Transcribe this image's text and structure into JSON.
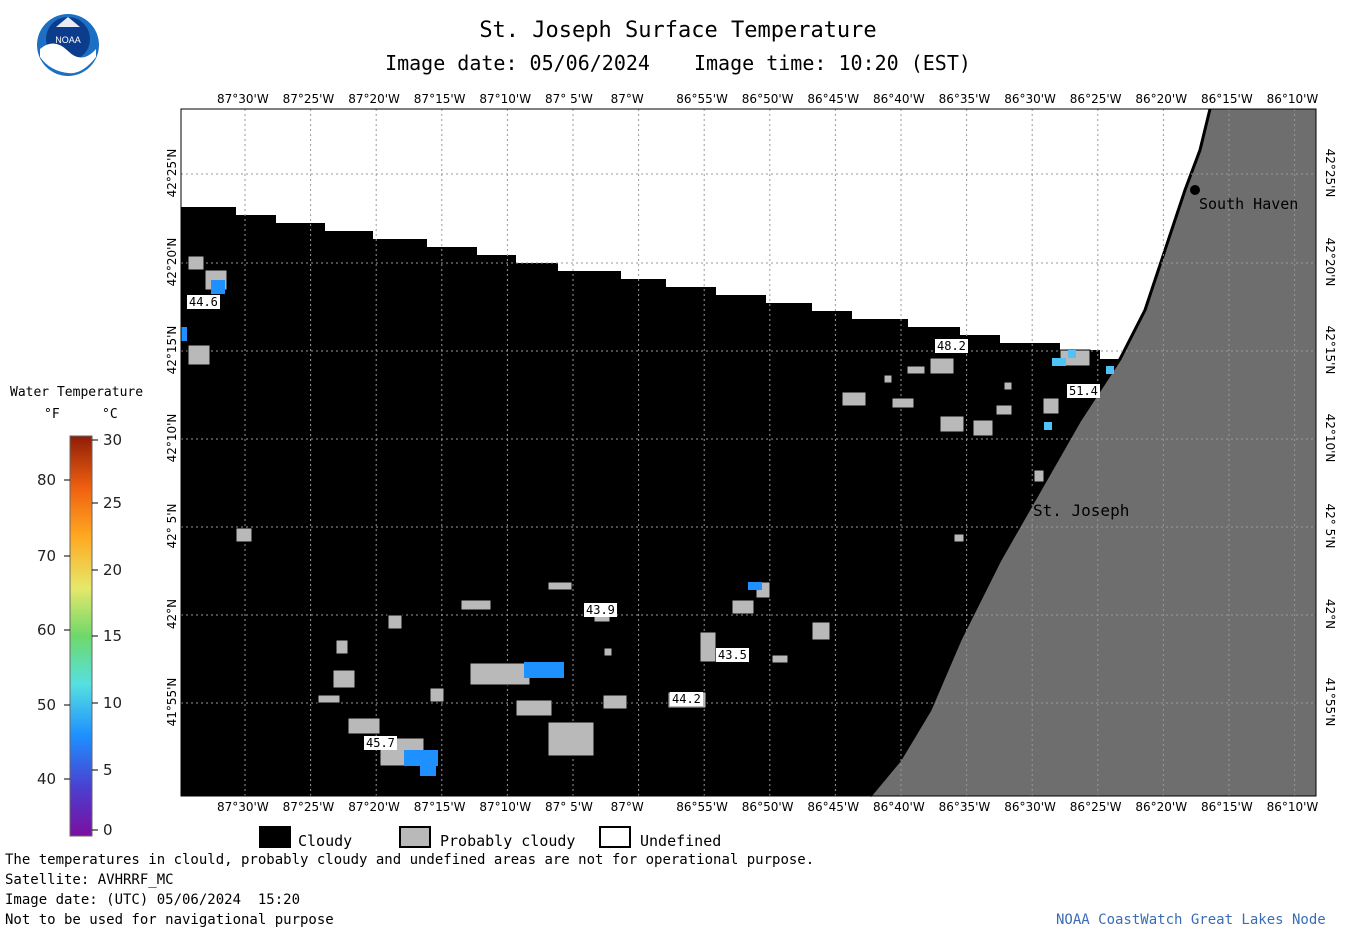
{
  "header": {
    "title": "St. Joseph Surface Temperature",
    "image_date": "Image date: 05/06/2024",
    "image_time": "Image time: 10:20 (EST)"
  },
  "logo": {
    "text": "NOAA",
    "colors": {
      "outer": "#1d6fc4",
      "inner": "#0c3c8c",
      "wave": "#ffffff"
    }
  },
  "map": {
    "top_lon_labels": [
      "87°30'W",
      "87°25'W",
      "87°20'W",
      "87°15'W",
      "87°10'W",
      "87° 5'W",
      "87°W",
      "86°55'W",
      "86°50'W",
      "86°45'W",
      "86°40'W",
      "86°35'W",
      "86°30'W",
      "86°25'W",
      "86°20'W",
      "86°15'W",
      "86°10'W"
    ],
    "bottom_lon_labels": [
      "87°30'W",
      "87°25'W",
      "87°20'W",
      "87°15'W",
      "87°10'W",
      "87° 5'W",
      "87°W",
      "86°55'W",
      "86°50'W",
      "86°45'W",
      "86°40'W",
      "86°35'W",
      "86°30'W",
      "86°25'W",
      "86°20'W",
      "86°15'W",
      "86°10'W"
    ],
    "lat_labels": [
      "42°25'N",
      "42°20'N",
      "42°15'N",
      "42°10'N",
      "42° 5'N",
      "42°N",
      "41°55'N"
    ],
    "cities": [
      {
        "name": "South Haven"
      },
      {
        "name": "St. Joseph"
      }
    ],
    "temperature_labels": [
      "44.6",
      "48.2",
      "51.4",
      "43.9",
      "43.5",
      "44.2",
      "45.7"
    ],
    "colors": {
      "cloudy": "#000000",
      "probably_cloudy": "#b9b9b9",
      "undefined": "#ffffff",
      "land": "#6e6e6e",
      "grid": "#888888",
      "water_warm": "#1e90ff",
      "water_cool": "#4fc3f7"
    }
  },
  "legend": {
    "title": "Water Temperature",
    "units": {
      "f": "°F",
      "c": "°C"
    },
    "f_ticks": [
      "80",
      "70",
      "60",
      "50",
      "40"
    ],
    "c_ticks": [
      "30",
      "25",
      "20",
      "15",
      "10",
      "5",
      "0"
    ]
  },
  "key": {
    "cloudy": "Cloudy",
    "probably_cloudy": "Probably cloudy",
    "undefined": "Undefined"
  },
  "footer": {
    "note": "The temperatures in clould, probably cloudy and undefined areas are not for operational purpose.",
    "satellite": "Satellite: AVHRRF_MC",
    "utc_date": "Image date: (UTC) 05/06/2024  15:20",
    "nav_warning": "Not to be used for navigational purpose",
    "credit": "NOAA CoastWatch Great Lakes Node"
  }
}
